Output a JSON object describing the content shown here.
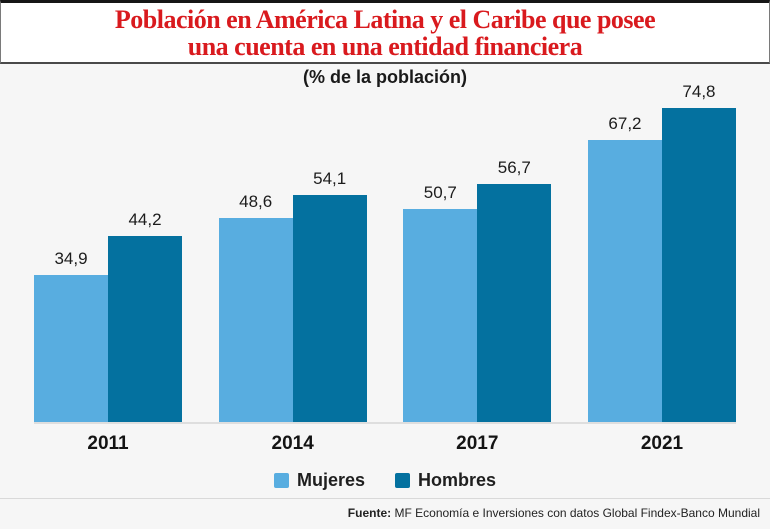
{
  "title": {
    "line1": "Población en América Latina y el Caribe que posee",
    "line2": "una cuenta en una entidad financiera"
  },
  "subtitle": "(% de la población)",
  "source": {
    "label": "Fuente:",
    "text": " MF Economía e Inversiones con datos Global Findex-Banco Mundial"
  },
  "colors": {
    "title_red": "#d91a1e",
    "mujeres_blue": "#58ade0",
    "hombres_blue": "#04719f",
    "chart_background": "#f6f6f6",
    "axis_line": "#dedede"
  },
  "chart_data": {
    "type": "bar",
    "categories": [
      "2011",
      "2014",
      "2017",
      "2021"
    ],
    "series": [
      {
        "name": "Mujeres",
        "color": "#58ade0",
        "values": [
          34.9,
          48.6,
          50.7,
          67.2
        ]
      },
      {
        "name": "Hombres",
        "color": "#04719f",
        "values": [
          44.2,
          54.1,
          56.7,
          74.8
        ]
      }
    ],
    "title": "Población en América Latina y el Caribe que posee una cuenta en una entidad financiera",
    "subtitle": "(% de la población)",
    "ylabel": "% de la población",
    "ylim": [
      0,
      80
    ],
    "grid": false,
    "value_labels": true,
    "decimal_separator": ",",
    "legend_position": "bottom",
    "source": "Fuente: MF Economía e Inversiones con datos Global Findex-Banco Mundial"
  }
}
